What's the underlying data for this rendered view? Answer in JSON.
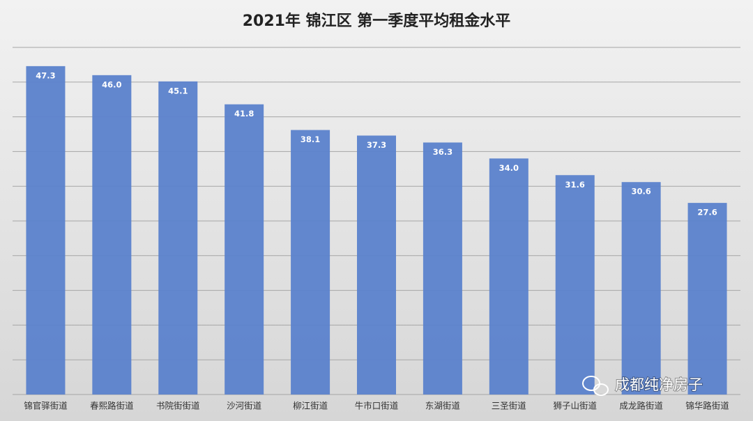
{
  "chart_data": {
    "type": "bar",
    "title": "2021年 锦江区 第一季度平均租金水平",
    "categories": [
      "锦官驿街道",
      "春熙路街道",
      "书院街街道",
      "沙河街道",
      "柳江街道",
      "牛市口街道",
      "东湖街道",
      "三圣街道",
      "狮子山街道",
      "成龙路街道",
      "锦华路街道"
    ],
    "values": [
      47.3,
      46.0,
      45.1,
      41.8,
      38.1,
      37.3,
      36.3,
      34.0,
      31.6,
      30.6,
      27.6
    ],
    "value_labels": [
      "47.3",
      "46.0",
      "45.1",
      "41.8",
      "38.1",
      "37.3",
      "36.3",
      "34.0",
      "31.6",
      "30.6",
      "27.6"
    ],
    "color": "#5b82cc",
    "ylim": [
      0,
      50
    ],
    "yticks": [
      0,
      5,
      10,
      15,
      20,
      25,
      30,
      35,
      40,
      45,
      50
    ],
    "grid": true
  },
  "watermark": "成都纯净房子"
}
